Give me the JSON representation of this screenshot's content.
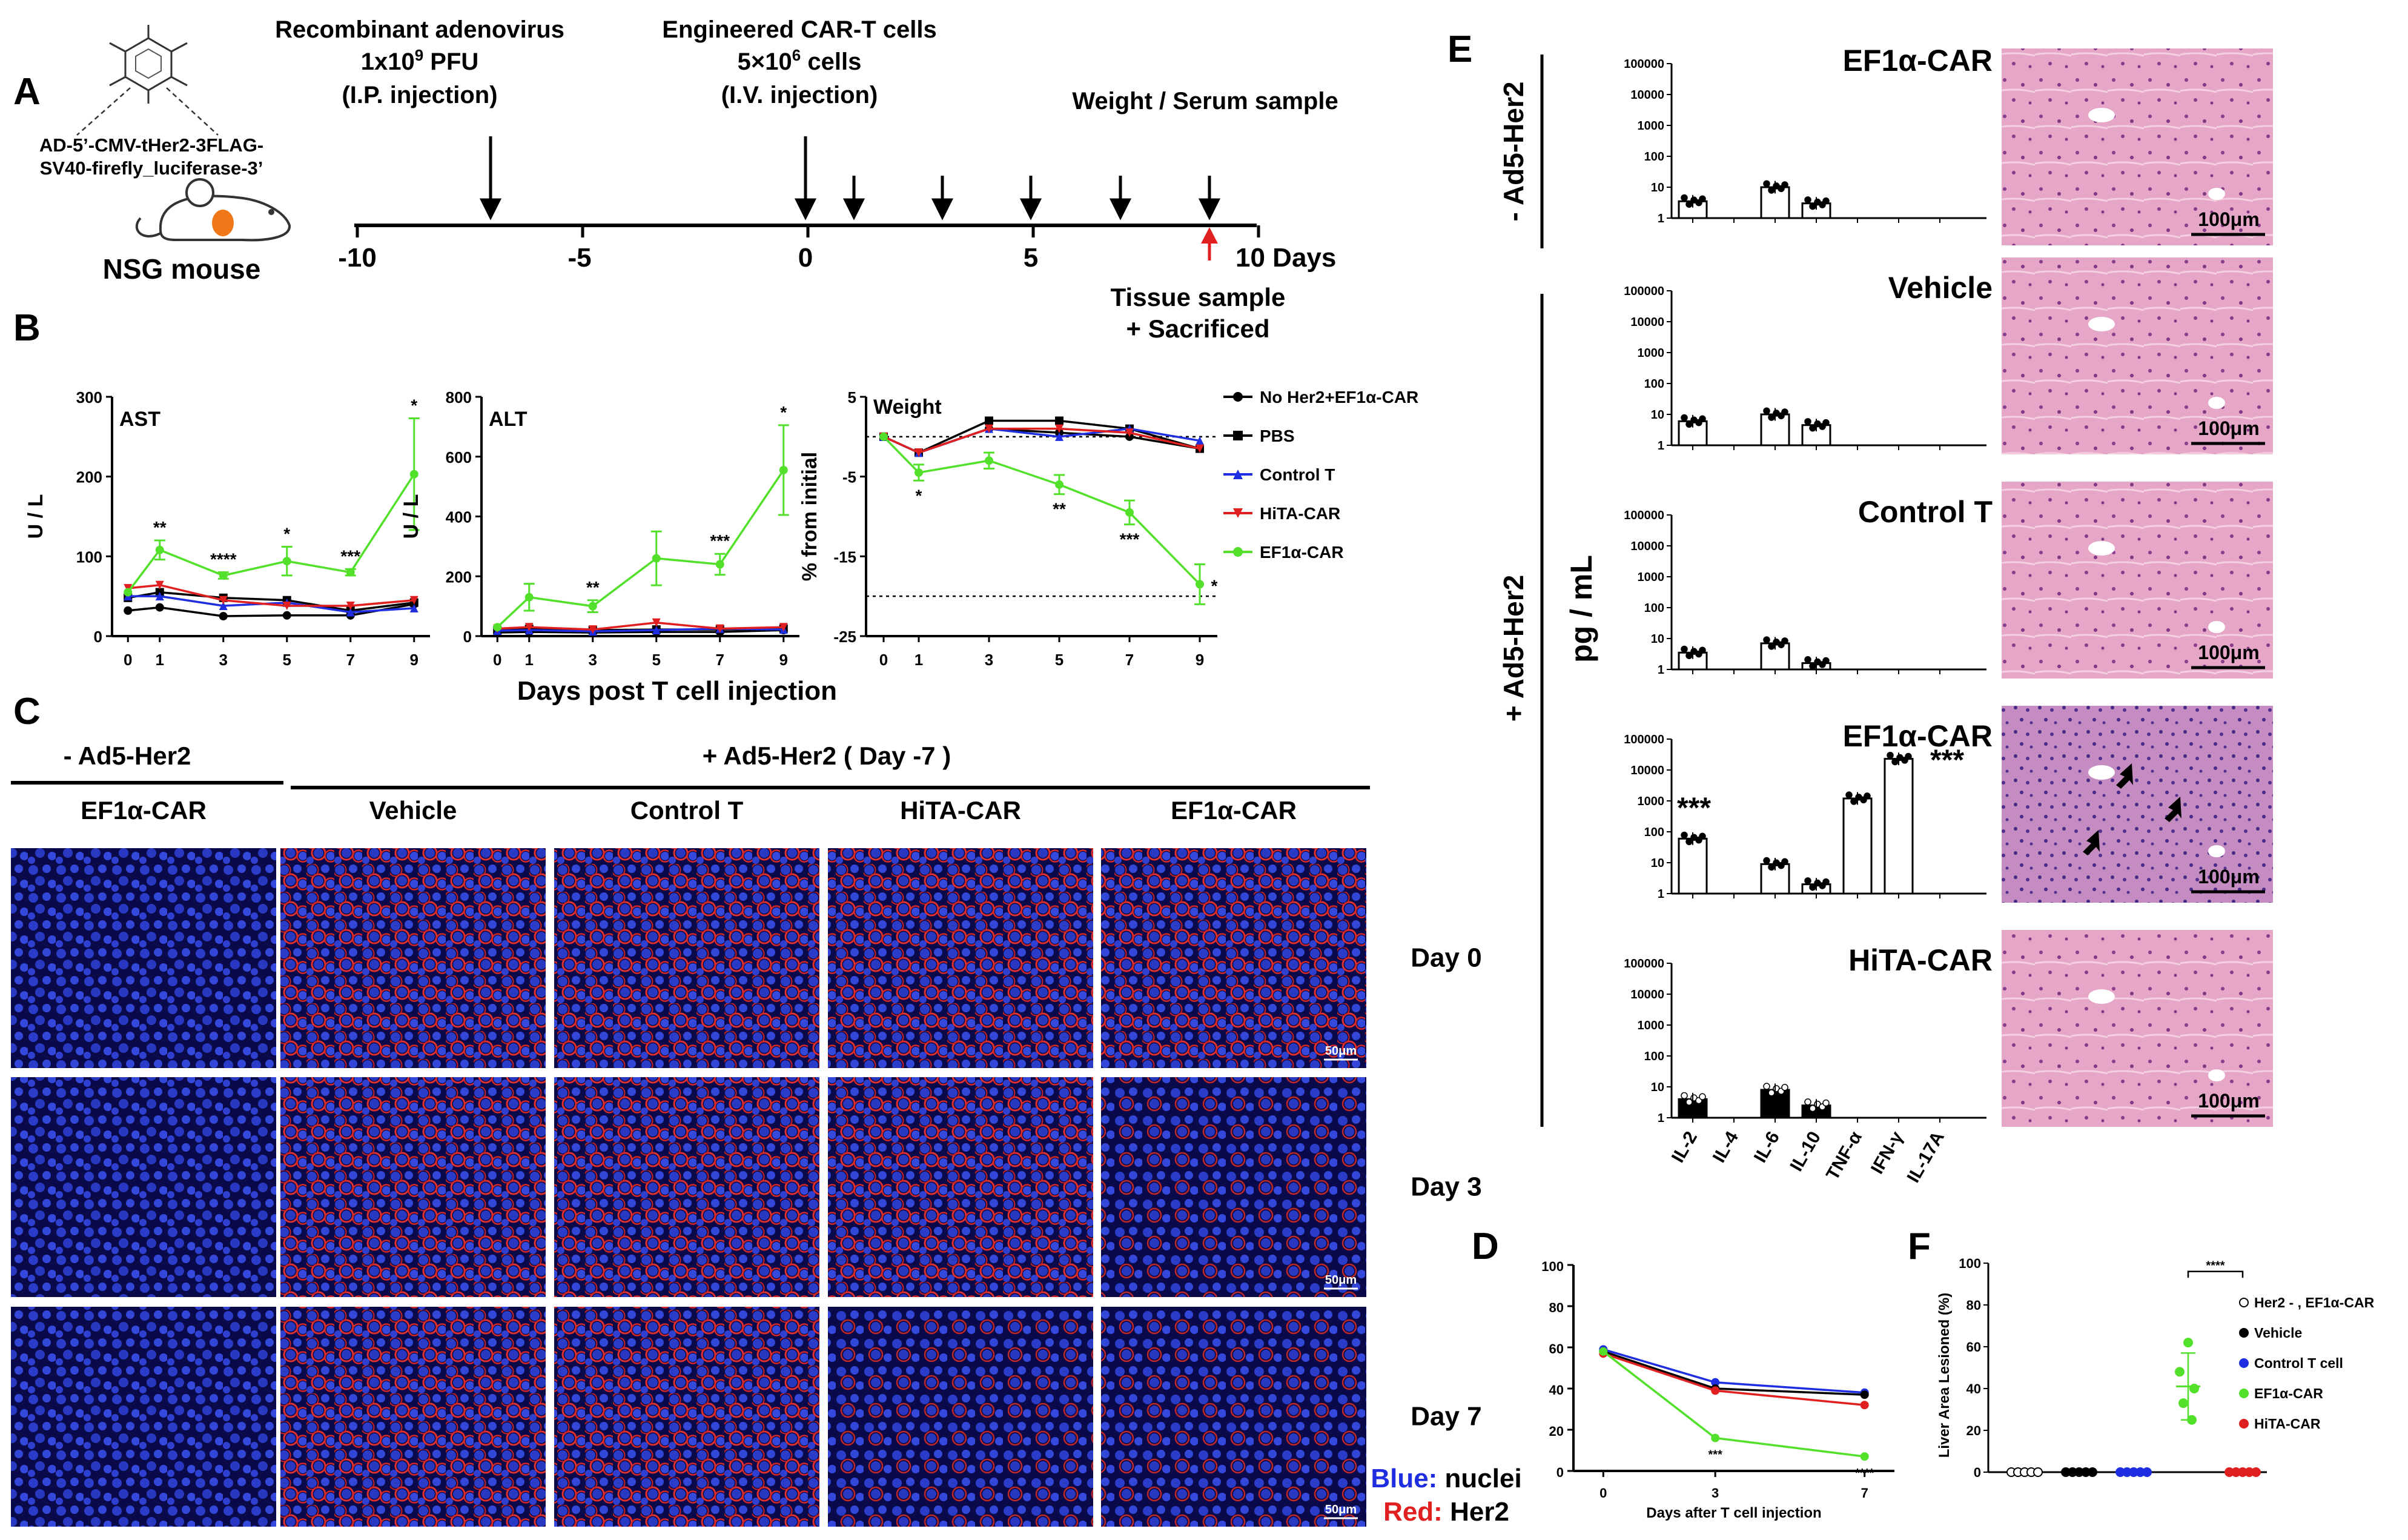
{
  "panel_letters": [
    "A",
    "B",
    "C",
    "D",
    "E",
    "F"
  ],
  "A": {
    "construct": [
      "AD-5’-CMV-tHer2-3FLAG-",
      "SV40-firefly_luciferase-3’"
    ],
    "mouse": "NSG mouse",
    "virus_title": "Recombinant adenovirus",
    "virus_dose": "1x10",
    "virus_dose_sup": "9",
    "virus_dose_unit": " PFU",
    "virus_route": "(I.P. injection)",
    "cells_title": "Engineered CAR-T cells",
    "cells_dose": "5×10",
    "cells_dose_sup": "6",
    "cells_dose_unit": " cells",
    "cells_route": "(I.V. injection)",
    "weight": "Weight / Serum sample",
    "ticks": [
      "-10",
      "-5",
      "0",
      "5",
      "10 Days"
    ],
    "tissue": [
      "Tissue sample",
      "+ Sacrificed"
    ]
  },
  "B": {
    "xlabel": "Days post T cell injection",
    "legend": [
      "No Her2+EF1α-CAR",
      "PBS",
      "Control T",
      "HiTA-CAR",
      "EF1α-CAR"
    ]
  },
  "C": {
    "left_header": "- Ad5-Her2",
    "right_header": "+ Ad5-Her2 ( Day -7 )",
    "columns": [
      "EF1α-CAR",
      "Vehicle",
      "Control T",
      "HiTA-CAR",
      "EF1α-CAR"
    ],
    "rows": [
      "Day 0",
      "Day 3",
      "Day 7"
    ],
    "scale": "50μm",
    "legend_blue_key": "Blue:",
    "legend_blue_val": " nuclei",
    "legend_red_key": "Red:",
    "legend_red_val": " Her2"
  },
  "E": {
    "group_neg": "- Ad5-Her2",
    "group_pos": "+ Ad5-Her2",
    "ylabel": "pg / mL",
    "panels": [
      "EF1α-CAR",
      "Vehicle",
      "Control T",
      "EF1α-CAR",
      "HiTA-CAR"
    ],
    "scale": "100μm",
    "stars": "***"
  },
  "F": {
    "ylabel": "Liver Area Lesioned (%)",
    "yticks": [
      "0",
      "20",
      "40",
      "60",
      "80",
      "100"
    ],
    "stars": "****",
    "legend": [
      "Her2 - , EF1α-CAR",
      "Vehicle",
      "Control T cell",
      "EF1α-CAR",
      "HiTA-CAR"
    ]
  },
  "chart_data": [
    {
      "id": "B-AST",
      "type": "line",
      "title": "AST",
      "ylabel": "U / L",
      "xlabel": "Days post T cell injection",
      "x": [
        0,
        1,
        3,
        5,
        7,
        9
      ],
      "ylim": [
        0,
        300
      ],
      "yticks": [
        0,
        100,
        200,
        300
      ],
      "series": [
        {
          "name": "No Her2+EF1α-CAR",
          "color": "#000000",
          "values": [
            32,
            36,
            25,
            26,
            26,
            40
          ]
        },
        {
          "name": "PBS",
          "color": "#000000",
          "values": [
            48,
            55,
            48,
            45,
            32,
            42
          ]
        },
        {
          "name": "Control T",
          "color": "#1f2ee0",
          "values": [
            50,
            50,
            38,
            42,
            30,
            35
          ]
        },
        {
          "name": "HiTA-CAR",
          "color": "#e02020",
          "values": [
            60,
            64,
            45,
            38,
            38,
            45
          ]
        },
        {
          "name": "EF1α-CAR",
          "color": "#52e02b",
          "values": [
            55,
            108,
            76,
            94,
            80,
            203
          ],
          "err": [
            0,
            12,
            4,
            18,
            4,
            70
          ]
        }
      ],
      "annotations": [
        {
          "x": 1,
          "text": "**"
        },
        {
          "x": 3,
          "text": "****"
        },
        {
          "x": 5,
          "text": "*"
        },
        {
          "x": 7,
          "text": "***"
        },
        {
          "x": 9,
          "text": "*"
        }
      ]
    },
    {
      "id": "B-ALT",
      "type": "line",
      "title": "ALT",
      "ylabel": "U / L",
      "x": [
        0,
        1,
        3,
        5,
        7,
        9
      ],
      "ylim": [
        0,
        800
      ],
      "yticks": [
        0,
        200,
        400,
        600,
        800
      ],
      "series": [
        {
          "name": "No Her2+EF1α-CAR",
          "color": "#000000",
          "values": [
            12,
            14,
            12,
            14,
            14,
            20
          ]
        },
        {
          "name": "PBS",
          "color": "#000000",
          "values": [
            20,
            24,
            20,
            22,
            22,
            25
          ]
        },
        {
          "name": "Control T",
          "color": "#1f2ee0",
          "values": [
            18,
            20,
            16,
            20,
            25,
            22
          ]
        },
        {
          "name": "HiTA-CAR",
          "color": "#e02020",
          "values": [
            25,
            30,
            22,
            45,
            25,
            30
          ]
        },
        {
          "name": "EF1α-CAR",
          "color": "#52e02b",
          "values": [
            30,
            130,
            100,
            260,
            240,
            555
          ],
          "err": [
            0,
            45,
            20,
            90,
            35,
            150
          ]
        }
      ],
      "annotations": [
        {
          "x": 3,
          "text": "**"
        },
        {
          "x": 7,
          "text": "***"
        },
        {
          "x": 9,
          "text": "*"
        }
      ]
    },
    {
      "id": "B-Weight",
      "type": "line",
      "title": "Weight",
      "ylabel": "% from initial",
      "x": [
        0,
        1,
        3,
        5,
        7,
        9
      ],
      "ylim": [
        -25,
        5
      ],
      "yticks": [
        -25,
        -15,
        -5,
        5
      ],
      "reference_lines": [
        0,
        -20
      ],
      "series": [
        {
          "name": "No Her2+EF1α-CAR",
          "color": "#000000",
          "values": [
            0,
            -2,
            1,
            0.5,
            0,
            -1.5
          ]
        },
        {
          "name": "PBS",
          "color": "#000000",
          "values": [
            0,
            -2,
            2,
            2,
            1,
            -1.5
          ]
        },
        {
          "name": "Control T",
          "color": "#1f2ee0",
          "values": [
            0,
            -2,
            1,
            0,
            1,
            -0.5
          ]
        },
        {
          "name": "HiTA-CAR",
          "color": "#e02020",
          "values": [
            0,
            -2,
            1,
            1,
            0.5,
            -1.5
          ]
        },
        {
          "name": "EF1α-CAR",
          "color": "#52e02b",
          "values": [
            0,
            -4.5,
            -3,
            -6,
            -9.5,
            -18.5
          ],
          "err": [
            0,
            1,
            1,
            1.2,
            1.5,
            2.5
          ]
        }
      ],
      "annotations": [
        {
          "x": 1,
          "text": "*"
        },
        {
          "x": 5,
          "text": "**"
        },
        {
          "x": 7,
          "text": "***"
        },
        {
          "x": 9,
          "text": "*"
        }
      ]
    },
    {
      "id": "E-cytokines",
      "type": "bar",
      "scale": "log",
      "ylim": [
        1,
        100000
      ],
      "yticks": [
        "1",
        "10",
        "100",
        "1000",
        "10000",
        "100000"
      ],
      "categories": [
        "IL-2",
        "IL-4",
        "IL-6",
        "IL-10",
        "TNF-α",
        "IFN-γ",
        "IL-17A"
      ],
      "groups": [
        {
          "name": "EF1α-CAR (- Ad5-Her2)",
          "values": [
            3.5,
            null,
            10,
            3,
            null,
            null,
            null
          ]
        },
        {
          "name": "Vehicle",
          "values": [
            6,
            null,
            10,
            4.5,
            null,
            null,
            null
          ]
        },
        {
          "name": "Control T",
          "values": [
            3.5,
            null,
            7,
            1.6,
            null,
            null,
            null
          ]
        },
        {
          "name": "EF1α-CAR",
          "values": [
            60,
            null,
            9,
            2,
            1200,
            23000,
            null
          ]
        },
        {
          "name": "HiTA-CAR",
          "values": [
            4,
            null,
            8,
            2.5,
            null,
            null,
            null
          ]
        }
      ]
    },
    {
      "id": "D",
      "type": "line",
      "xlabel": "Days after T cell injection",
      "x": [
        0,
        3,
        7
      ],
      "ylim": [
        0,
        100
      ],
      "yticks": [
        0,
        20,
        40,
        60,
        80,
        100
      ],
      "series": [
        {
          "name": "Control T",
          "color": "#1f2ee0",
          "values": [
            59,
            43,
            38
          ]
        },
        {
          "name": "Vehicle",
          "color": "#000000",
          "values": [
            58,
            40,
            37
          ]
        },
        {
          "name": "HiTA-CAR",
          "color": "#e02020",
          "values": [
            57,
            39,
            32
          ]
        },
        {
          "name": "EF1α-CAR",
          "color": "#52e02b",
          "values": [
            58,
            16,
            7
          ]
        }
      ],
      "annotations": [
        {
          "x": 3,
          "text": "***"
        },
        {
          "x": 7,
          "text": "****"
        }
      ]
    },
    {
      "id": "F",
      "type": "scatter",
      "ylabel": "Liver Area Lesioned (%)",
      "ylim": [
        0,
        100
      ],
      "groups": [
        {
          "name": "Her2 - , EF1α-CAR",
          "color": "#ffffff",
          "values": [
            0,
            0,
            0,
            0,
            0
          ]
        },
        {
          "name": "Vehicle",
          "color": "#000000",
          "values": [
            0,
            0,
            0,
            0,
            0
          ]
        },
        {
          "name": "Control T cell",
          "color": "#1f2ee0",
          "values": [
            0,
            0,
            0,
            0,
            0
          ]
        },
        {
          "name": "EF1α-CAR",
          "color": "#52e02b",
          "values": [
            62,
            48,
            40,
            33,
            25
          ],
          "mean": 41,
          "err": 16
        },
        {
          "name": "HiTA-CAR",
          "color": "#e02020",
          "values": [
            0,
            0,
            0,
            0,
            0
          ]
        }
      ],
      "annotation": "****"
    }
  ]
}
